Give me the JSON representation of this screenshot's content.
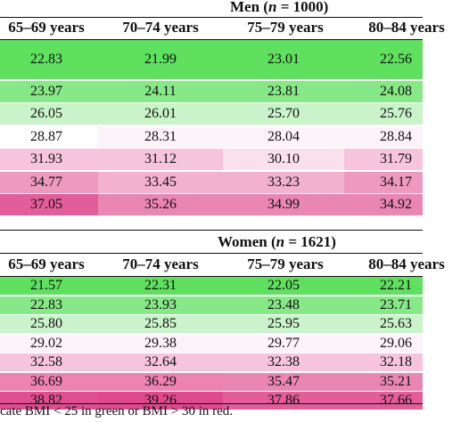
{
  "columns": [
    "65–69 years",
    "70–74 years",
    "75–79 years",
    "80–84 years"
  ],
  "men": {
    "title_prefix": "Men (",
    "n_symbol": "n",
    "title_suffix": " = 1000)",
    "rows": [
      {
        "values": [
          "22.83",
          "21.99",
          "23.01",
          "22.56"
        ],
        "colors": [
          "#5fe05f",
          "#5fe05f",
          "#5fe05f",
          "#5fe05f"
        ]
      },
      {
        "values": [
          "23.97",
          "24.11",
          "23.81",
          "24.08"
        ],
        "colors": [
          "#86e886",
          "#86e886",
          "#86e886",
          "#86e886"
        ]
      },
      {
        "values": [
          "26.05",
          "26.01",
          "25.70",
          "25.76"
        ],
        "colors": [
          "#c9f3c9",
          "#c9f3c9",
          "#c9f3c9",
          "#c9f3c9"
        ]
      },
      {
        "values": [
          "28.87",
          "28.31",
          "28.04",
          "28.84"
        ],
        "colors": [
          "#ffffff",
          "#fcf3f8",
          "#fcf3f8",
          "#fcf3f8"
        ]
      },
      {
        "values": [
          "31.93",
          "31.12",
          "30.10",
          "31.79"
        ],
        "colors": [
          "#f6c4dc",
          "#f6c4dc",
          "#fae0ec",
          "#f6c4dc"
        ]
      },
      {
        "values": [
          "34.77",
          "33.45",
          "33.23",
          "34.17"
        ],
        "colors": [
          "#ee99c0",
          "#f2b1cf",
          "#f2b1cf",
          "#ee99c0"
        ]
      },
      {
        "values": [
          "37.05",
          "35.26",
          "34.99",
          "34.92"
        ],
        "colors": [
          "#e25d9a",
          "#ea86b4",
          "#ea86b4",
          "#ea86b4"
        ]
      }
    ]
  },
  "women": {
    "title_prefix": "Women (",
    "n_symbol": "n",
    "title_suffix": " = 1621)",
    "rows": [
      {
        "values": [
          "21.57",
          "22.31",
          "22.05",
          "22.21"
        ],
        "colors": [
          "#5fe05f",
          "#5fe05f",
          "#5fe05f",
          "#5fe05f"
        ]
      },
      {
        "values": [
          "22.83",
          "23.93",
          "23.48",
          "23.71"
        ],
        "colors": [
          "#86e886",
          "#86e886",
          "#86e886",
          "#86e886"
        ]
      },
      {
        "values": [
          "25.80",
          "25.85",
          "25.95",
          "25.63"
        ],
        "colors": [
          "#c9f3c9",
          "#c9f3c9",
          "#c9f3c9",
          "#c9f3c9"
        ]
      },
      {
        "values": [
          "29.02",
          "29.38",
          "29.77",
          "29.06"
        ],
        "colors": [
          "#fcf3f8",
          "#fcf3f8",
          "#fcf3f8",
          "#fcf3f8"
        ]
      },
      {
        "values": [
          "32.58",
          "32.64",
          "32.38",
          "32.18"
        ],
        "colors": [
          "#f6c4dc",
          "#f6c4dc",
          "#f6c4dc",
          "#f6c4dc"
        ]
      },
      {
        "values": [
          "36.69",
          "36.29",
          "35.47",
          "35.21"
        ],
        "colors": [
          "#ee82b2",
          "#ee82b2",
          "#ea86b4",
          "#ea86b4"
        ]
      },
      {
        "values": [
          "38.82",
          "39.26",
          "37.86",
          "37.66"
        ],
        "colors": [
          "#e04e92",
          "#df4a8f",
          "#e25d9a",
          "#e25d9a"
        ]
      }
    ]
  },
  "footnote": "cate BMI < 25 in green or BMI > 30 in red."
}
